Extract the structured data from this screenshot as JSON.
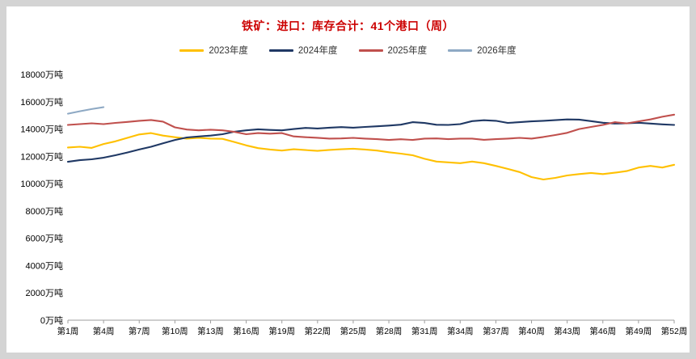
{
  "title": "铁矿：进口：库存合计：41个港口（周）",
  "colors": {
    "title": "#cc0000",
    "background": "#d4d4d4",
    "panel": "#ffffff",
    "axis": "#9e9e9e",
    "tick_text": "#000000"
  },
  "chart_data": {
    "type": "line",
    "title": "铁矿：进口：库存合计：41个港口（周）",
    "ylabel_suffix": "万吨",
    "ylim": [
      0,
      18000
    ],
    "ytick_step": 2000,
    "grid": false,
    "legend_position": "top",
    "weeks": 52,
    "xtick_labels": [
      "第1周",
      "第4周",
      "第7周",
      "第10周",
      "第13周",
      "第16周",
      "第19周",
      "第22周",
      "第25周",
      "第28周",
      "第31周",
      "第34周",
      "第37周",
      "第40周",
      "第43周",
      "第46周",
      "第49周",
      "第52周"
    ],
    "xtick_week_numbers": [
      1,
      4,
      7,
      10,
      13,
      16,
      19,
      22,
      25,
      28,
      31,
      34,
      37,
      40,
      43,
      46,
      49,
      52
    ],
    "series": [
      {
        "name": "2023年度",
        "color": "#FFC000",
        "values": [
          12650,
          12700,
          12620,
          12900,
          13100,
          13350,
          13600,
          13700,
          13520,
          13400,
          13300,
          13350,
          13300,
          13280,
          13050,
          12800,
          12600,
          12500,
          12420,
          12520,
          12460,
          12400,
          12470,
          12520,
          12560,
          12500,
          12420,
          12300,
          12200,
          12080,
          11820,
          11620,
          11560,
          11500,
          11620,
          11500,
          11300,
          11080,
          10850,
          10480,
          10300,
          10420,
          10600,
          10700,
          10780,
          10700,
          10800,
          10920,
          11180,
          11300,
          11180,
          11380
        ]
      },
      {
        "name": "2024年度",
        "color": "#1F3864",
        "values": [
          11600,
          11720,
          11780,
          11900,
          12080,
          12280,
          12500,
          12700,
          12950,
          13200,
          13380,
          13450,
          13520,
          13620,
          13800,
          13900,
          13980,
          13930,
          13900,
          14000,
          14080,
          14040,
          14100,
          14140,
          14100,
          14150,
          14200,
          14250,
          14320,
          14500,
          14440,
          14310,
          14300,
          14360,
          14580,
          14640,
          14600,
          14450,
          14500,
          14560,
          14600,
          14650,
          14700,
          14690,
          14580,
          14460,
          14400,
          14420,
          14460,
          14400,
          14340,
          14300
        ]
      },
      {
        "name": "2025年度",
        "color": "#C0504D",
        "values": [
          14300,
          14360,
          14420,
          14360,
          14450,
          14520,
          14600,
          14660,
          14540,
          14120,
          13960,
          13900,
          13950,
          13900,
          13790,
          13620,
          13700,
          13660,
          13700,
          13460,
          13400,
          13360,
          13300,
          13310,
          13350,
          13300,
          13260,
          13200,
          13250,
          13200,
          13300,
          13310,
          13260,
          13300,
          13300,
          13210,
          13260,
          13300,
          13350,
          13300,
          13420,
          13560,
          13720,
          14000,
          14150,
          14300,
          14500,
          14410,
          14560,
          14700,
          14900,
          15050
        ]
      },
      {
        "name": "2026年度",
        "color": "#8EA9C4",
        "values": [
          15120,
          15300,
          15460,
          15600
        ]
      }
    ]
  }
}
